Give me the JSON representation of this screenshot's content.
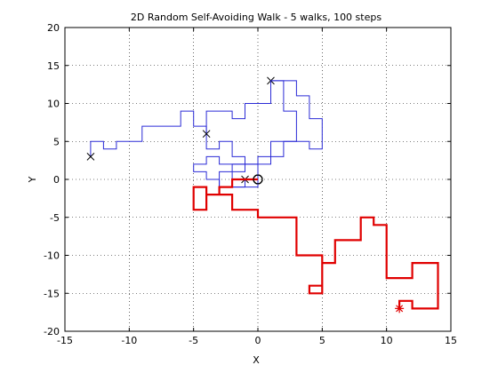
{
  "chart_data": {
    "type": "line",
    "title": "2D Random Self-Avoiding Walk - 5 walks, 100 steps",
    "xlabel": "X",
    "ylabel": "Y",
    "xlim": [
      -15,
      15
    ],
    "ylim": [
      -20,
      20
    ],
    "xticks": [
      -15,
      -10,
      -5,
      0,
      5,
      10,
      15
    ],
    "yticks": [
      -20,
      -15,
      -10,
      -5,
      0,
      5,
      10,
      15,
      20
    ],
    "grid": true,
    "colors": {
      "blue_walks": "#2b2bd6",
      "highlight_walk": "#e00000",
      "axes": "#000000",
      "grid": "#000000"
    },
    "series": [
      {
        "color": "#2b2bd6",
        "marker_start": "circle",
        "marker_end": "x",
        "points": [
          [
            0,
            0
          ],
          [
            -1,
            0
          ],
          [
            -1,
            -1
          ],
          [
            -3,
            -1
          ],
          [
            -3,
            1
          ],
          [
            -2,
            1
          ],
          [
            -2,
            2
          ],
          [
            1,
            2
          ],
          [
            1,
            5
          ],
          [
            4,
            5
          ],
          [
            4,
            4
          ],
          [
            5,
            4
          ],
          [
            5,
            6
          ],
          [
            5,
            8
          ],
          [
            4,
            8
          ],
          [
            4,
            9
          ],
          [
            4,
            11
          ],
          [
            3,
            11
          ],
          [
            3,
            13
          ],
          [
            1,
            13
          ]
        ]
      },
      {
        "color": "#2b2bd6",
        "marker_start": "circle",
        "marker_end": "x",
        "points": [
          [
            0,
            0
          ],
          [
            0,
            2
          ],
          [
            -1,
            2
          ],
          [
            -1,
            3
          ],
          [
            -2,
            3
          ],
          [
            -2,
            5
          ],
          [
            -3,
            5
          ],
          [
            -3,
            4
          ],
          [
            -4,
            4
          ],
          [
            -4,
            7
          ],
          [
            -5,
            7
          ],
          [
            -5,
            9
          ],
          [
            -6,
            9
          ],
          [
            -6,
            7
          ],
          [
            -9,
            7
          ],
          [
            -9,
            5
          ],
          [
            -11,
            5
          ],
          [
            -11,
            4
          ],
          [
            -12,
            4
          ],
          [
            -12,
            5
          ],
          [
            -13,
            5
          ],
          [
            -13,
            3
          ]
        ]
      },
      {
        "color": "#2b2bd6",
        "marker_start": "circle",
        "marker_end": "x",
        "points": [
          [
            0,
            0
          ],
          [
            0,
            3
          ],
          [
            2,
            3
          ],
          [
            2,
            5
          ],
          [
            3,
            5
          ],
          [
            3,
            9
          ],
          [
            2,
            9
          ],
          [
            2,
            13
          ],
          [
            1,
            13
          ],
          [
            1,
            10
          ],
          [
            -1,
            10
          ],
          [
            -1,
            8
          ],
          [
            -2,
            8
          ],
          [
            -2,
            9
          ],
          [
            -4,
            9
          ],
          [
            -4,
            6
          ]
        ]
      },
      {
        "color": "#2b2bd6",
        "marker_start": "circle",
        "marker_end": "x",
        "points": [
          [
            0,
            0
          ],
          [
            0,
            -1
          ],
          [
            -3,
            -1
          ],
          [
            -3,
            0
          ],
          [
            -4,
            0
          ],
          [
            -4,
            1
          ],
          [
            -5,
            1
          ],
          [
            -5,
            2
          ],
          [
            -4,
            2
          ],
          [
            -4,
            3
          ],
          [
            -3,
            3
          ],
          [
            -3,
            2
          ],
          [
            -1,
            2
          ],
          [
            -1,
            1
          ],
          [
            -2,
            1
          ],
          [
            -2,
            0
          ],
          [
            -1,
            0
          ]
        ]
      },
      {
        "color": "#e00000",
        "marker_start": "circle",
        "marker_end": "star",
        "points": [
          [
            0,
            0
          ],
          [
            -2,
            0
          ],
          [
            -2,
            -1
          ],
          [
            -3,
            -1
          ],
          [
            -3,
            -2
          ],
          [
            -4,
            -2
          ],
          [
            -4,
            -4
          ],
          [
            -5,
            -4
          ],
          [
            -5,
            -1
          ],
          [
            -4,
            -1
          ],
          [
            -4,
            -2
          ],
          [
            -2,
            -2
          ],
          [
            -2,
            -4
          ],
          [
            0,
            -4
          ],
          [
            0,
            -5
          ],
          [
            3,
            -5
          ],
          [
            3,
            -10
          ],
          [
            5,
            -10
          ],
          [
            5,
            -15
          ],
          [
            4,
            -15
          ],
          [
            4,
            -14
          ],
          [
            5,
            -14
          ],
          [
            5,
            -11
          ],
          [
            6,
            -11
          ],
          [
            6,
            -8
          ],
          [
            8,
            -8
          ],
          [
            8,
            -5
          ],
          [
            9,
            -5
          ],
          [
            9,
            -6
          ],
          [
            10,
            -6
          ],
          [
            10,
            -13
          ],
          [
            12,
            -13
          ],
          [
            12,
            -11
          ],
          [
            14,
            -11
          ],
          [
            14,
            -17
          ],
          [
            12,
            -17
          ],
          [
            12,
            -16
          ],
          [
            11,
            -16
          ],
          [
            11,
            -17
          ]
        ]
      }
    ]
  }
}
